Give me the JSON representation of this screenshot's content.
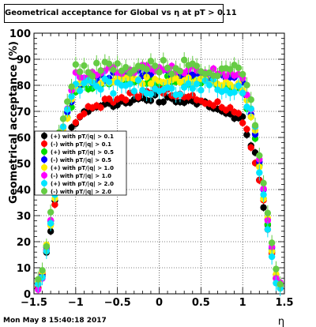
{
  "title": "Geometrical acceptance for Global vs  η at pT > 0.11",
  "timestamp": "Mon May  8 15:40:18 2017",
  "chart_data": {
    "type": "scatter",
    "xlabel": "η",
    "ylabel": "Geometrical acceptance (%)",
    "xlim": [
      -1.5,
      1.5
    ],
    "ylim": [
      0,
      100
    ],
    "x_ticks": [
      "−1.5",
      "−1",
      "−0.5",
      "0",
      "0.5",
      "1",
      "1.5"
    ],
    "x_tick_values": [
      -1.5,
      -1,
      -0.5,
      0,
      0.5,
      1,
      1.5
    ],
    "y_ticks": [
      "0",
      "10",
      "20",
      "30",
      "40",
      "50",
      "60",
      "70",
      "80",
      "90",
      "100"
    ],
    "y_tick_values": [
      0,
      10,
      20,
      30,
      40,
      50,
      60,
      70,
      80,
      90,
      100
    ],
    "grid": true,
    "legend_position": "center-left",
    "series": [
      {
        "name": "(+) with pT/|q| > 0.1",
        "color": "#000000",
        "plateau": 74,
        "edge_rise": 0.1,
        "center_bump": 1
      },
      {
        "name": "(-) with pT/|q| > 0.1",
        "color": "#ff0000",
        "plateau": 76,
        "edge_rise": 0.12,
        "center_bump": 2
      },
      {
        "name": "(+) with pT/|q| > 0.5",
        "color": "#00dd00",
        "plateau": 82,
        "edge_rise": 0.05,
        "center_bump": 0
      },
      {
        "name": "(-) with pT/|q| > 0.5",
        "color": "#0000ff",
        "plateau": 84,
        "edge_rise": 0.04,
        "center_bump": 1
      },
      {
        "name": "(+) with pT/|q| > 1.0",
        "color": "#ffee00",
        "plateau": 82,
        "edge_rise": 0.03,
        "center_bump": 0
      },
      {
        "name": "(-) with pT/|q| > 1.0",
        "color": "#ff00ff",
        "plateau": 86,
        "edge_rise": 0.03,
        "center_bump": 1
      },
      {
        "name": "(+) with pT/|q| > 2.0",
        "color": "#00e5ff",
        "plateau": 80,
        "edge_rise": 0.02,
        "center_bump": -3
      },
      {
        "name": "(-) with pT/|q| > 2.0",
        "color": "#66cc44",
        "plateau": 87,
        "edge_rise": 0.02,
        "center_bump": 0
      }
    ]
  }
}
